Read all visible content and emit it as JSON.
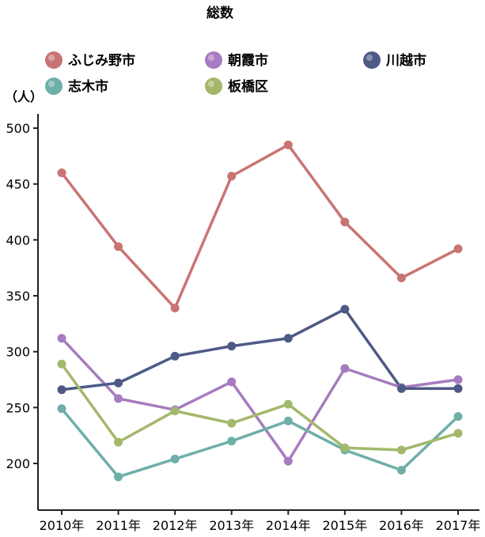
{
  "chart_data": {
    "type": "line",
    "title": "総数",
    "ylabel": "（人）",
    "xlabel": "",
    "categories": [
      "2010年",
      "2011年",
      "2012年",
      "2013年",
      "2014年",
      "2015年",
      "2016年",
      "2017年"
    ],
    "ylim": [
      150,
      520
    ],
    "yticks": [
      200,
      250,
      300,
      350,
      400,
      450,
      500
    ],
    "grid": false,
    "legend_position": "top",
    "series": [
      {
        "name": "ふじみ野市",
        "color": "#c97474",
        "values": [
          460,
          394,
          339,
          457,
          485,
          416,
          366,
          392
        ]
      },
      {
        "name": "朝霞市",
        "color": "#a77bc0",
        "values": [
          312,
          258,
          248,
          273,
          202,
          285,
          268,
          275
        ]
      },
      {
        "name": "川越市",
        "color": "#4e5a86",
        "values": [
          266,
          272,
          296,
          305,
          312,
          338,
          267,
          267
        ]
      },
      {
        "name": "志木市",
        "color": "#6eafa8",
        "values": [
          249,
          188,
          204,
          220,
          238,
          212,
          194,
          242
        ]
      },
      {
        "name": "板橋区",
        "color": "#a3b86a",
        "values": [
          289,
          219,
          247,
          236,
          253,
          214,
          212,
          227
        ]
      }
    ]
  }
}
